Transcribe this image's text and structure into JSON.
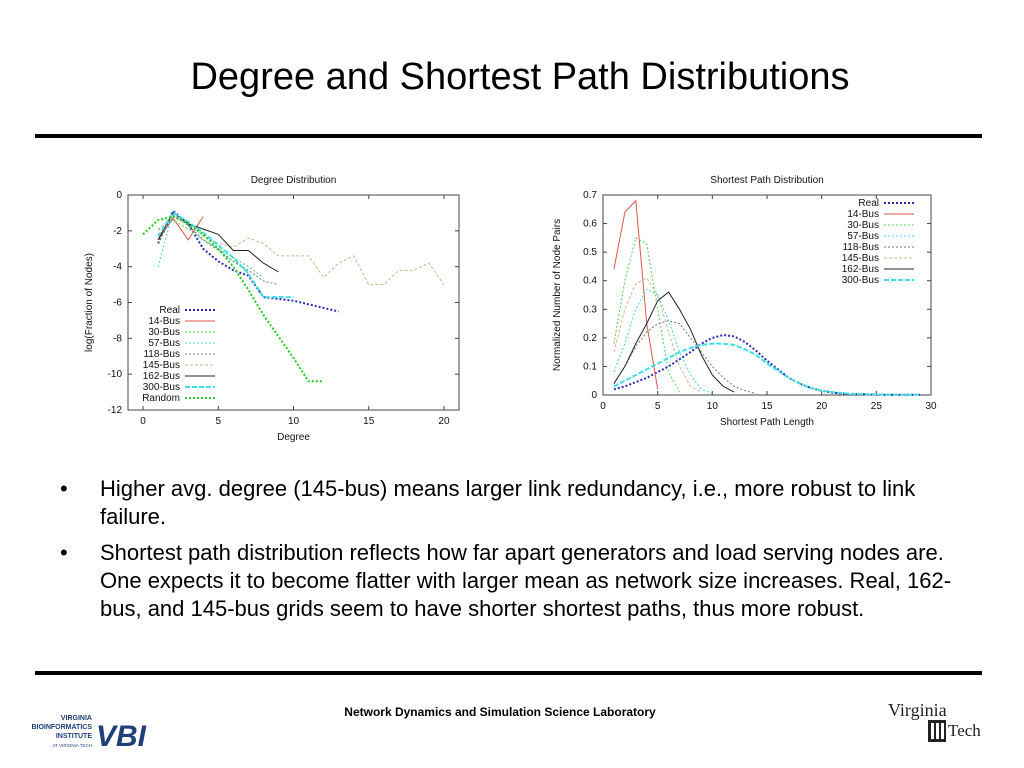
{
  "slide": {
    "title": "Degree and Shortest Path Distributions",
    "bullets": [
      "Higher avg. degree (145-bus) means larger link redundancy, i.e., more robust to link failure.",
      "Shortest path distribution reflects how far apart generators and load serving nodes are. One expects it to become flatter with larger mean as network size increases. Real, 162-bus, and 145-bus grids seem to have shorter shortest paths, thus more robust."
    ],
    "bullet_glyph": "•",
    "footer": "Network Dynamics  and  Simulation Science Laboratory",
    "logos": {
      "vbi_text": [
        "VIRGINIA",
        "BIOINFORMATICS",
        "INSTITUTE",
        "AT VIRGINIA TECH"
      ],
      "vbi_mark": "VBI",
      "vt_text": [
        "Virginia",
        "Tech"
      ]
    },
    "colors": {
      "rule": "#000000",
      "vbi": "#1f3f7a",
      "vt": "#222222"
    }
  },
  "chart_data": [
    {
      "type": "line",
      "title": "Degree Distribution",
      "xlabel": "Degree",
      "ylabel": "log(Fraction of Nodes)",
      "xlim": [
        -1,
        21
      ],
      "ylim": [
        -12,
        0
      ],
      "xticks": [
        0,
        5,
        10,
        15,
        20
      ],
      "yticks": [
        0,
        -2,
        -4,
        -6,
        -8,
        -10,
        -12
      ],
      "legend_position": "bottom-left",
      "series": [
        {
          "name": "Real",
          "color": "#2b2bb8",
          "dash": "2,2",
          "width": 2,
          "x": [
            1,
            2,
            3,
            4,
            5,
            6,
            7,
            8,
            9,
            10,
            11,
            12,
            13
          ],
          "y": [
            -2.7,
            -0.9,
            -1.6,
            -3.0,
            -3.7,
            -4.2,
            -4.5,
            -5.7,
            -5.8,
            -5.9,
            -6.1,
            -6.3,
            -6.5
          ]
        },
        {
          "name": "14-Bus",
          "color": "#e0554a",
          "dash": "",
          "width": 1,
          "x": [
            1,
            2,
            3,
            4
          ],
          "y": [
            -2.5,
            -1.3,
            -2.5,
            -1.2
          ]
        },
        {
          "name": "30-Bus",
          "color": "#4fd44f",
          "dash": "2,2",
          "width": 1,
          "x": [
            1,
            2,
            3,
            4,
            5,
            6,
            7,
            8
          ],
          "y": [
            -1.9,
            -1.4,
            -1.9,
            -2.5,
            -3.0,
            -3.5,
            -4.0,
            -4.6
          ]
        },
        {
          "name": "57-Bus",
          "color": "#44d8dc",
          "dash": "2,2",
          "width": 1,
          "x": [
            1,
            2,
            3,
            4,
            5,
            6,
            7
          ],
          "y": [
            -4.0,
            -0.9,
            -1.7,
            -2.5,
            -3.0,
            -3.7,
            -4.3
          ]
        },
        {
          "name": "118-Bus",
          "color": "#7a7a7a",
          "dash": "2,2",
          "width": 1,
          "x": [
            1,
            2,
            3,
            4,
            5,
            6,
            7,
            8,
            9
          ],
          "y": [
            -2.7,
            -1.1,
            -1.7,
            -2.5,
            -3.1,
            -3.7,
            -4.2,
            -4.8,
            -5.0
          ]
        },
        {
          "name": "145-Bus",
          "color": "#d4b48c",
          "dash": "3,2",
          "width": 1,
          "x": [
            1,
            2,
            3,
            4,
            5,
            6,
            7,
            8,
            9,
            10,
            11,
            12,
            13,
            14,
            15,
            16,
            17,
            18,
            19,
            20
          ],
          "y": [
            -2.0,
            -1.2,
            -1.6,
            -2.3,
            -2.7,
            -2.9,
            -2.4,
            -2.7,
            -3.4,
            -3.4,
            -3.4,
            -4.6,
            -3.8,
            -3.4,
            -5.0,
            -5.0,
            -4.2,
            -4.2,
            -3.8,
            -5.0
          ]
        },
        {
          "name": "162-Bus",
          "color": "#222222",
          "dash": "",
          "width": 1,
          "x": [
            1,
            2,
            3,
            4,
            5,
            6,
            7,
            8,
            9
          ],
          "y": [
            -2.5,
            -1.0,
            -1.6,
            -1.9,
            -2.2,
            -3.1,
            -3.1,
            -3.8,
            -4.3
          ]
        },
        {
          "name": "300-Bus",
          "color": "#3ee0e8",
          "dash": "5,2",
          "width": 2,
          "x": [
            1,
            2,
            3,
            4,
            5,
            6,
            7,
            8,
            9,
            10
          ],
          "y": [
            -2.3,
            -1.0,
            -1.5,
            -2.1,
            -2.8,
            -3.5,
            -4.4,
            -5.7,
            -5.7,
            -5.7
          ]
        },
        {
          "name": "Random",
          "color": "#22cc22",
          "dash": "2,2",
          "width": 2,
          "x": [
            0,
            1,
            2,
            3,
            4,
            5,
            6,
            7,
            8,
            9,
            10,
            11,
            12
          ],
          "y": [
            -2.2,
            -1.4,
            -1.2,
            -1.6,
            -2.2,
            -3.0,
            -4.0,
            -5.3,
            -6.7,
            -7.9,
            -9.1,
            -10.4,
            -10.4
          ]
        }
      ]
    },
    {
      "type": "line",
      "title": "Shortest Path Distribution",
      "xlabel": "Shortest Path Length",
      "ylabel": "Normalized Number of Node Pairs",
      "xlim": [
        0,
        30
      ],
      "ylim": [
        0,
        0.7
      ],
      "xticks": [
        0,
        5,
        10,
        15,
        20,
        25,
        30
      ],
      "yticks": [
        0,
        0.1,
        0.2,
        0.3,
        0.4,
        0.5,
        0.6,
        0.7
      ],
      "legend_position": "top-right",
      "series": [
        {
          "name": "Real",
          "color": "#2b2bb8",
          "dash": "2,2",
          "width": 2,
          "x": [
            1,
            2,
            3,
            4,
            5,
            6,
            7,
            8,
            9,
            10,
            11,
            12,
            13,
            14,
            15,
            16,
            17,
            18,
            19,
            20,
            21,
            22,
            23,
            24,
            25,
            26,
            27,
            28,
            29
          ],
          "y": [
            0.02,
            0.03,
            0.045,
            0.06,
            0.08,
            0.1,
            0.125,
            0.15,
            0.18,
            0.2,
            0.21,
            0.205,
            0.185,
            0.155,
            0.12,
            0.09,
            0.06,
            0.04,
            0.025,
            0.015,
            0.008,
            0.005,
            0.003,
            0.002,
            0.001,
            0.001,
            0.001,
            0.001,
            0.001
          ]
        },
        {
          "name": "14-Bus",
          "color": "#e0554a",
          "dash": "",
          "width": 1,
          "x": [
            1,
            2,
            3,
            4,
            5
          ],
          "y": [
            0.44,
            0.64,
            0.68,
            0.25,
            0.02
          ]
        },
        {
          "name": "30-Bus",
          "color": "#4fd44f",
          "dash": "2,2",
          "width": 1,
          "x": [
            1,
            2,
            3,
            4,
            5,
            6,
            7
          ],
          "y": [
            0.18,
            0.4,
            0.55,
            0.53,
            0.3,
            0.08,
            0.01
          ]
        },
        {
          "name": "57-Bus",
          "color": "#44d8dc",
          "dash": "2,2",
          "width": 1,
          "x": [
            1,
            2,
            3,
            4,
            5,
            6,
            7,
            8,
            9,
            10
          ],
          "y": [
            0.08,
            0.18,
            0.3,
            0.37,
            0.35,
            0.26,
            0.15,
            0.07,
            0.02,
            0.005
          ]
        },
        {
          "name": "118-Bus",
          "color": "#7a7a7a",
          "dash": "2,2",
          "width": 1,
          "x": [
            1,
            2,
            3,
            4,
            5,
            6,
            7,
            8,
            9,
            10,
            11,
            12,
            13,
            14
          ],
          "y": [
            0.04,
            0.1,
            0.17,
            0.22,
            0.25,
            0.26,
            0.25,
            0.2,
            0.15,
            0.1,
            0.06,
            0.03,
            0.015,
            0.005
          ]
        },
        {
          "name": "145-Bus",
          "color": "#d4b48c",
          "dash": "3,2",
          "width": 1,
          "x": [
            1,
            2,
            3,
            4,
            5,
            6,
            7,
            8,
            9
          ],
          "y": [
            0.15,
            0.3,
            0.39,
            0.41,
            0.35,
            0.22,
            0.1,
            0.03,
            0.01
          ]
        },
        {
          "name": "162-Bus",
          "color": "#222222",
          "dash": "",
          "width": 1,
          "x": [
            1,
            2,
            3,
            4,
            5,
            6,
            7,
            8,
            9,
            10,
            11,
            12
          ],
          "y": [
            0.04,
            0.1,
            0.18,
            0.25,
            0.33,
            0.36,
            0.3,
            0.23,
            0.14,
            0.07,
            0.03,
            0.01
          ]
        },
        {
          "name": "300-Bus",
          "color": "#3ee0e8",
          "dash": "5,2",
          "width": 2,
          "x": [
            1,
            2,
            3,
            4,
            5,
            6,
            7,
            8,
            9,
            10,
            11,
            12,
            13,
            14,
            15,
            16,
            17,
            18,
            19,
            20,
            21,
            22,
            23,
            24,
            25,
            26,
            27,
            28,
            29
          ],
          "y": [
            0.03,
            0.05,
            0.07,
            0.09,
            0.11,
            0.13,
            0.15,
            0.165,
            0.175,
            0.18,
            0.18,
            0.175,
            0.16,
            0.14,
            0.11,
            0.085,
            0.06,
            0.04,
            0.025,
            0.015,
            0.01,
            0.006,
            0.004,
            0.003,
            0.002,
            0.001,
            0.001,
            0.001,
            0.001
          ]
        }
      ]
    }
  ]
}
